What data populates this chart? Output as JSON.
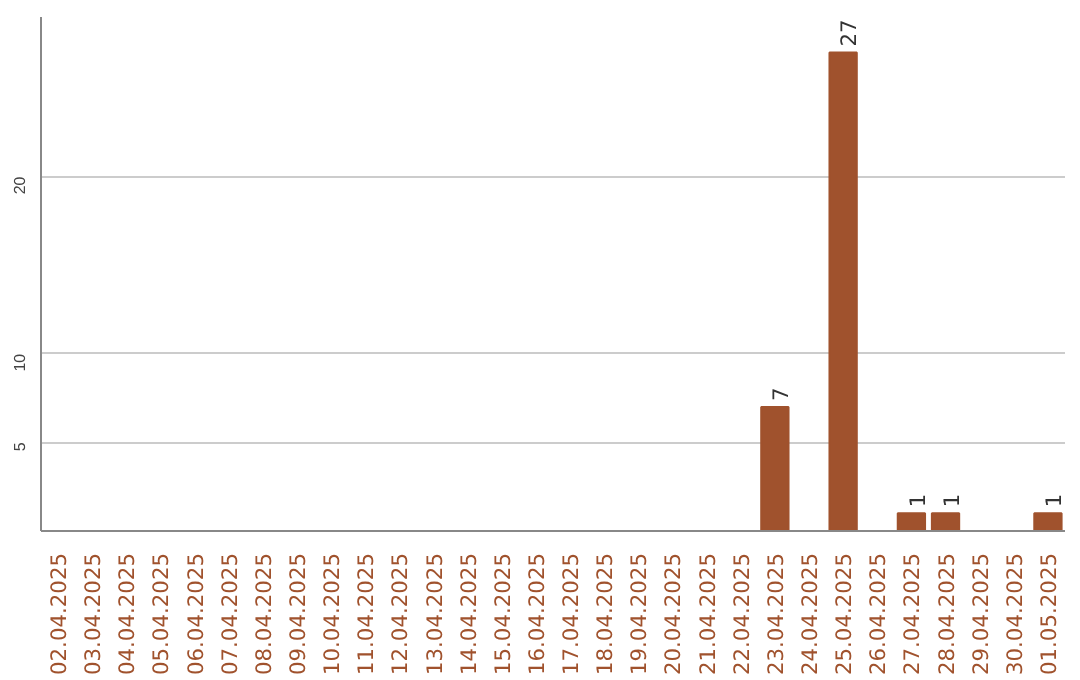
{
  "chart_data": {
    "type": "bar",
    "categories": [
      "02.04.2025",
      "03.04.2025",
      "04.04.2025",
      "05.04.2025",
      "06.04.2025",
      "07.04.2025",
      "08.04.2025",
      "09.04.2025",
      "10.04.2025",
      "11.04.2025",
      "12.04.2025",
      "13.04.2025",
      "14.04.2025",
      "15.04.2025",
      "16.04.2025",
      "17.04.2025",
      "18.04.2025",
      "19.04.2025",
      "20.04.2025",
      "21.04.2025",
      "22.04.2025",
      "23.04.2025",
      "24.04.2025",
      "25.04.2025",
      "26.04.2025",
      "27.04.2025",
      "28.04.2025",
      "29.04.2025",
      "30.04.2025",
      "01.05.2025"
    ],
    "values": [
      0,
      0,
      0,
      0,
      0,
      0,
      0,
      0,
      0,
      0,
      0,
      0,
      0,
      0,
      0,
      0,
      0,
      0,
      0,
      0,
      0,
      7,
      0,
      27,
      0,
      1,
      1,
      0,
      0,
      1
    ],
    "value_labels": [
      null,
      null,
      null,
      null,
      null,
      null,
      null,
      null,
      null,
      null,
      null,
      null,
      null,
      null,
      null,
      null,
      null,
      null,
      null,
      null,
      null,
      "7",
      null,
      "27",
      null,
      "1",
      "1",
      null,
      null,
      "1"
    ],
    "color": "#a0522d",
    "ylim": [
      0,
      29
    ],
    "yticks": [
      5,
      10,
      20
    ],
    "grid": "y"
  }
}
